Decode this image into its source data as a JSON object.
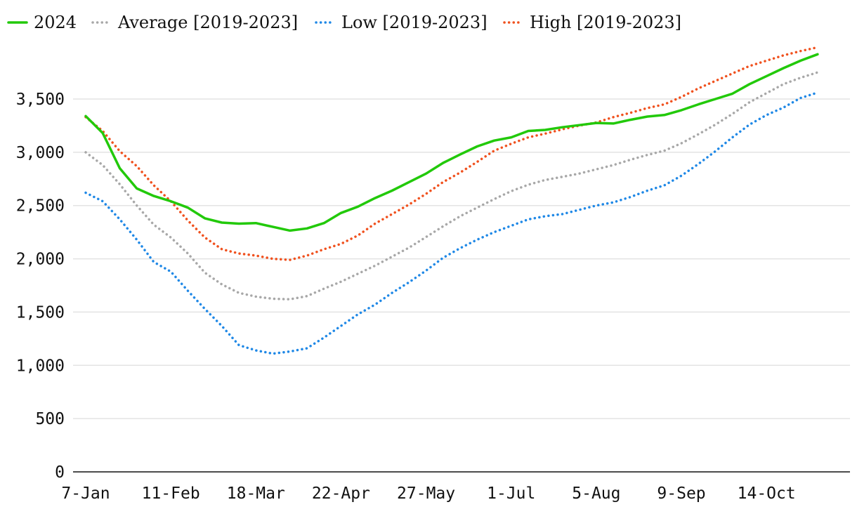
{
  "chart_data": {
    "type": "line",
    "title": "",
    "xlabel": "",
    "ylabel": "",
    "ylim": [
      0,
      4000
    ],
    "yticks": [
      0,
      500,
      1000,
      1500,
      2000,
      2500,
      3000,
      3500
    ],
    "ytick_labels": [
      "0",
      "500",
      "1,000",
      "1,500",
      "2,000",
      "2,500",
      "3,000",
      "3,500"
    ],
    "xticks": [
      {
        "week": 1,
        "label": "7-Jan"
      },
      {
        "week": 6,
        "label": "11-Feb"
      },
      {
        "week": 11,
        "label": "18-Mar"
      },
      {
        "week": 16,
        "label": "22-Apr"
      },
      {
        "week": 21,
        "label": "27-May"
      },
      {
        "week": 26,
        "label": "1-Jul"
      },
      {
        "week": 31,
        "label": "5-Aug"
      },
      {
        "week": 36,
        "label": "9-Sep"
      },
      {
        "week": 41,
        "label": "14-Oct"
      }
    ],
    "x": [
      1,
      2,
      3,
      4,
      5,
      6,
      7,
      8,
      9,
      10,
      11,
      12,
      13,
      14,
      15,
      16,
      17,
      18,
      19,
      20,
      21,
      22,
      23,
      24,
      25,
      26,
      27,
      28,
      29,
      30,
      31,
      32,
      33,
      34,
      35,
      36,
      37,
      38,
      39,
      40,
      41,
      42,
      43,
      44
    ],
    "grid": true,
    "legend_position": "top-left",
    "series": [
      {
        "name": "2024",
        "color": "#22c90a",
        "style": "solid",
        "values": [
          3340,
          3180,
          2850,
          2660,
          2590,
          2540,
          2480,
          2380,
          2340,
          2330,
          2335,
          2300,
          2265,
          2285,
          2335,
          2430,
          2490,
          2570,
          2640,
          2720,
          2800,
          2900,
          2980,
          3055,
          3110,
          3140,
          3200,
          3210,
          3235,
          3255,
          3275,
          3270,
          3305,
          3335,
          3350,
          3395,
          3450,
          3500,
          3550,
          3640,
          3715,
          3790,
          3860,
          3920
        ]
      },
      {
        "name": "Average [2019-2023]",
        "color": "#a8a8a8",
        "style": "dotted",
        "values": [
          3000,
          2880,
          2700,
          2500,
          2320,
          2200,
          2050,
          1870,
          1760,
          1680,
          1645,
          1625,
          1620,
          1650,
          1720,
          1785,
          1860,
          1935,
          2020,
          2105,
          2205,
          2305,
          2400,
          2480,
          2560,
          2635,
          2695,
          2740,
          2770,
          2800,
          2840,
          2880,
          2930,
          2975,
          3015,
          3085,
          3170,
          3260,
          3360,
          3470,
          3555,
          3640,
          3700,
          3750
        ]
      },
      {
        "name": "Low [2019-2023]",
        "color": "#1f88e6",
        "style": "dotted",
        "values": [
          2620,
          2540,
          2370,
          2180,
          1970,
          1880,
          1700,
          1530,
          1370,
          1190,
          1140,
          1110,
          1130,
          1160,
          1260,
          1370,
          1480,
          1570,
          1680,
          1780,
          1890,
          2010,
          2100,
          2180,
          2250,
          2310,
          2370,
          2400,
          2420,
          2460,
          2500,
          2530,
          2580,
          2640,
          2690,
          2780,
          2890,
          3010,
          3140,
          3260,
          3350,
          3420,
          3510,
          3560
        ]
      },
      {
        "name": "High [2019-2023]",
        "color": "#f0511e",
        "style": "dotted",
        "values": [
          3330,
          3200,
          3010,
          2870,
          2690,
          2540,
          2360,
          2200,
          2090,
          2050,
          2030,
          2000,
          1990,
          2030,
          2090,
          2140,
          2220,
          2330,
          2420,
          2510,
          2610,
          2720,
          2810,
          2910,
          3015,
          3080,
          3140,
          3175,
          3215,
          3250,
          3280,
          3330,
          3370,
          3415,
          3450,
          3520,
          3600,
          3670,
          3740,
          3810,
          3860,
          3910,
          3950,
          3985
        ]
      }
    ]
  }
}
